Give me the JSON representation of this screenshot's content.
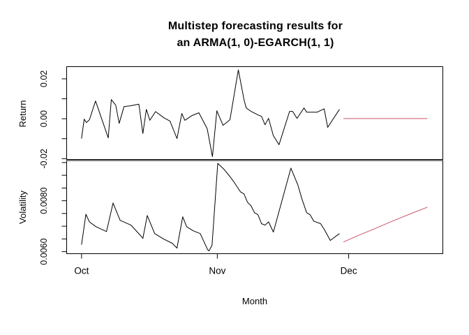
{
  "figure": {
    "title_line1": "Multistep forecasting results for",
    "title_line2": "an ARMA(1, 0)-EGARCH(1, 1)",
    "xlabel": "Month",
    "background": "#ffffff",
    "axis_color": "#000000",
    "series_color_observed": "#000000",
    "series_color_forecast": "#cd5569"
  },
  "chart_data": [
    {
      "type": "line",
      "panel": "top",
      "ylabel": "Return",
      "x_unit": "days since Oct 1",
      "xlim": [
        -3.4,
        82.5
      ],
      "ylim": [
        -0.0204,
        0.0261
      ],
      "grid": false,
      "yticks": [
        {
          "v": -0.02,
          "label": "-0.02"
        },
        {
          "v": -0.01,
          "label": ""
        },
        {
          "v": 0.0,
          "label": "0.00"
        },
        {
          "v": 0.01,
          "label": ""
        },
        {
          "v": 0.02,
          "label": "0.02"
        }
      ],
      "xticks": null,
      "series": [
        {
          "name": "observed-return",
          "color_ref": "observed",
          "points": [
            [
              0,
              -0.0099
            ],
            [
              0.6,
              -0.0002
            ],
            [
              1.1,
              -0.0019
            ],
            [
              1.8,
              -0.0005
            ],
            [
              3.2,
              0.0089
            ],
            [
              6.1,
              -0.0096
            ],
            [
              6.8,
              0.0096
            ],
            [
              7.8,
              0.0068
            ],
            [
              8.6,
              -0.0023
            ],
            [
              9.7,
              0.0061
            ],
            [
              11,
              0.0064
            ],
            [
              13.1,
              0.0073
            ],
            [
              14,
              -0.0074
            ],
            [
              14.8,
              0.0047
            ],
            [
              15.6,
              -0.0008
            ],
            [
              16.9,
              0.0036
            ],
            [
              18.8,
              0.0005
            ],
            [
              20.2,
              -0.0012
            ],
            [
              21.8,
              -0.0099
            ],
            [
              22.9,
              0.0026
            ],
            [
              23.6,
              -0.0008
            ],
            [
              25.2,
              0.0016
            ],
            [
              26.8,
              0.003
            ],
            [
              28.7,
              -0.005
            ],
            [
              29.9,
              -0.019
            ],
            [
              30.9,
              0.004
            ],
            [
              32.3,
              -0.0033
            ],
            [
              33.9,
              -0.0005
            ],
            [
              35.8,
              0.0245
            ],
            [
              37.1,
              0.0096
            ],
            [
              37.6,
              0.0054
            ],
            [
              38.7,
              0.0037
            ],
            [
              40.3,
              0.0019
            ],
            [
              41.1,
              0.0012
            ],
            [
              41.9,
              -0.003
            ],
            [
              42.7,
              0.0002
            ],
            [
              43.8,
              -0.0085
            ],
            [
              45.1,
              -0.013
            ],
            [
              47.5,
              0.0037
            ],
            [
              48.2,
              0.0037
            ],
            [
              49.2,
              0.0002
            ],
            [
              50.8,
              0.0054
            ],
            [
              51.4,
              0.0033
            ],
            [
              53.8,
              0.0033
            ],
            [
              55.4,
              0.005
            ],
            [
              56.2,
              -0.0043
            ],
            [
              58.9,
              0.0047
            ]
          ]
        },
        {
          "name": "forecast-return",
          "color_ref": "forecast",
          "points": [
            [
              59.8,
              0.0001
            ],
            [
              79,
              0.0001
            ]
          ]
        }
      ]
    },
    {
      "type": "line",
      "panel": "bottom",
      "ylabel": "Volatility",
      "x_unit": "days since Oct 1",
      "xlim": [
        -3.4,
        82.5
      ],
      "ylim": [
        0.00592,
        0.00958
      ],
      "grid": false,
      "yticks": [
        {
          "v": 0.006,
          "label": "0.0060"
        },
        {
          "v": 0.0065,
          "label": ""
        },
        {
          "v": 0.007,
          "label": ""
        },
        {
          "v": 0.0075,
          "label": ""
        },
        {
          "v": 0.008,
          "label": "0.0080"
        },
        {
          "v": 0.0085,
          "label": ""
        },
        {
          "v": 0.009,
          "label": ""
        },
        {
          "v": 0.0095,
          "label": ""
        }
      ],
      "xticks": [
        {
          "v": 0,
          "label": "Oct"
        },
        {
          "v": 31,
          "label": "Nov"
        },
        {
          "v": 61,
          "label": "Dec"
        }
      ],
      "series": [
        {
          "name": "observed-volatility",
          "color_ref": "observed",
          "points": [
            [
              0,
              0.00627
            ],
            [
              1,
              0.00747
            ],
            [
              1.8,
              0.00717
            ],
            [
              3.3,
              0.00698
            ],
            [
              5.7,
              0.00679
            ],
            [
              7.2,
              0.00791
            ],
            [
              8.8,
              0.00723
            ],
            [
              11.3,
              0.00704
            ],
            [
              13.5,
              0.00663
            ],
            [
              14,
              0.00652
            ],
            [
              15,
              0.00742
            ],
            [
              16.7,
              0.00671
            ],
            [
              18.8,
              0.00649
            ],
            [
              20.7,
              0.00633
            ],
            [
              21.8,
              0.00614
            ],
            [
              23.1,
              0.00737
            ],
            [
              24,
              0.00698
            ],
            [
              25.5,
              0.00682
            ],
            [
              27.1,
              0.00671
            ],
            [
              28.8,
              0.00608
            ],
            [
              29.1,
              0.00603
            ],
            [
              29.8,
              0.00625
            ],
            [
              31.1,
              0.00947
            ],
            [
              32.6,
              0.00922
            ],
            [
              33.9,
              0.00895
            ],
            [
              34.7,
              0.00876
            ],
            [
              36.3,
              0.00835
            ],
            [
              37.1,
              0.00827
            ],
            [
              37.9,
              0.00794
            ],
            [
              38.7,
              0.0078
            ],
            [
              39.5,
              0.00753
            ],
            [
              40.3,
              0.00745
            ],
            [
              41.1,
              0.0071
            ],
            [
              41.9,
              0.00704
            ],
            [
              42.7,
              0.00717
            ],
            [
              43.8,
              0.00677
            ],
            [
              47.8,
              0.00928
            ],
            [
              49.4,
              0.00862
            ],
            [
              50.3,
              0.00808
            ],
            [
              51.4,
              0.00753
            ],
            [
              52.2,
              0.00745
            ],
            [
              53,
              0.0072
            ],
            [
              54.6,
              0.0071
            ],
            [
              55.4,
              0.00688
            ],
            [
              56.2,
              0.00663
            ],
            [
              56.8,
              0.00644
            ],
            [
              58.9,
              0.00671
            ]
          ]
        },
        {
          "name": "forecast-volatility",
          "color_ref": "forecast",
          "points": [
            [
              59.8,
              0.00638
            ],
            [
              63.1,
              0.00663
            ],
            [
              66.9,
              0.0069
            ],
            [
              71,
              0.0072
            ],
            [
              75.3,
              0.0075
            ],
            [
              79,
              0.00775
            ]
          ]
        }
      ]
    }
  ]
}
